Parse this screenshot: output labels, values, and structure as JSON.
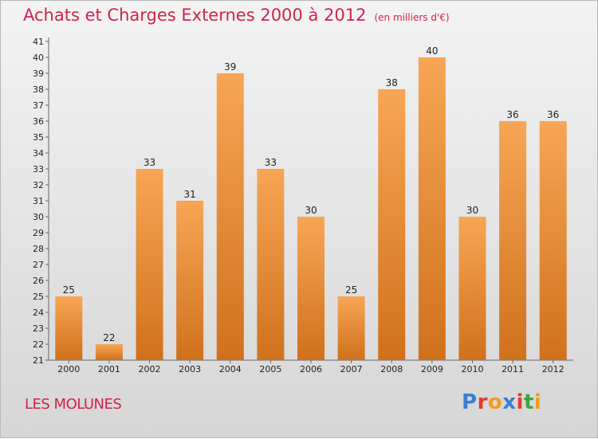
{
  "title": "Achats et Charges Externes 2000 à 2012",
  "unit": "(en milliers d'€)",
  "commune": "LES MOLUNES",
  "logo": "Proxiti",
  "colors": {
    "accent": "#d0244a",
    "bar_top": "#f7a655",
    "bar_bottom": "#d0711c",
    "logo": [
      "#3b7fd0",
      "#e03a2a",
      "#f29a1e",
      "#3b7fd0",
      "#e03a2a",
      "#3aa63a",
      "#f29a1e"
    ]
  },
  "chart_data": {
    "type": "bar",
    "categories": [
      "2000",
      "2001",
      "2002",
      "2003",
      "2004",
      "2005",
      "2006",
      "2007",
      "2008",
      "2009",
      "2010",
      "2011",
      "2012"
    ],
    "values": [
      25,
      22,
      33,
      31,
      39,
      33,
      30,
      25,
      38,
      40,
      30,
      36,
      36
    ],
    "title": "Achats et Charges Externes 2000 à 2012",
    "ylim": [
      21,
      41
    ],
    "yticks": [
      21,
      22,
      23,
      24,
      25,
      26,
      27,
      28,
      29,
      30,
      31,
      32,
      33,
      34,
      35,
      36,
      37,
      38,
      39,
      40,
      41
    ],
    "grid": false,
    "legend": "none"
  }
}
